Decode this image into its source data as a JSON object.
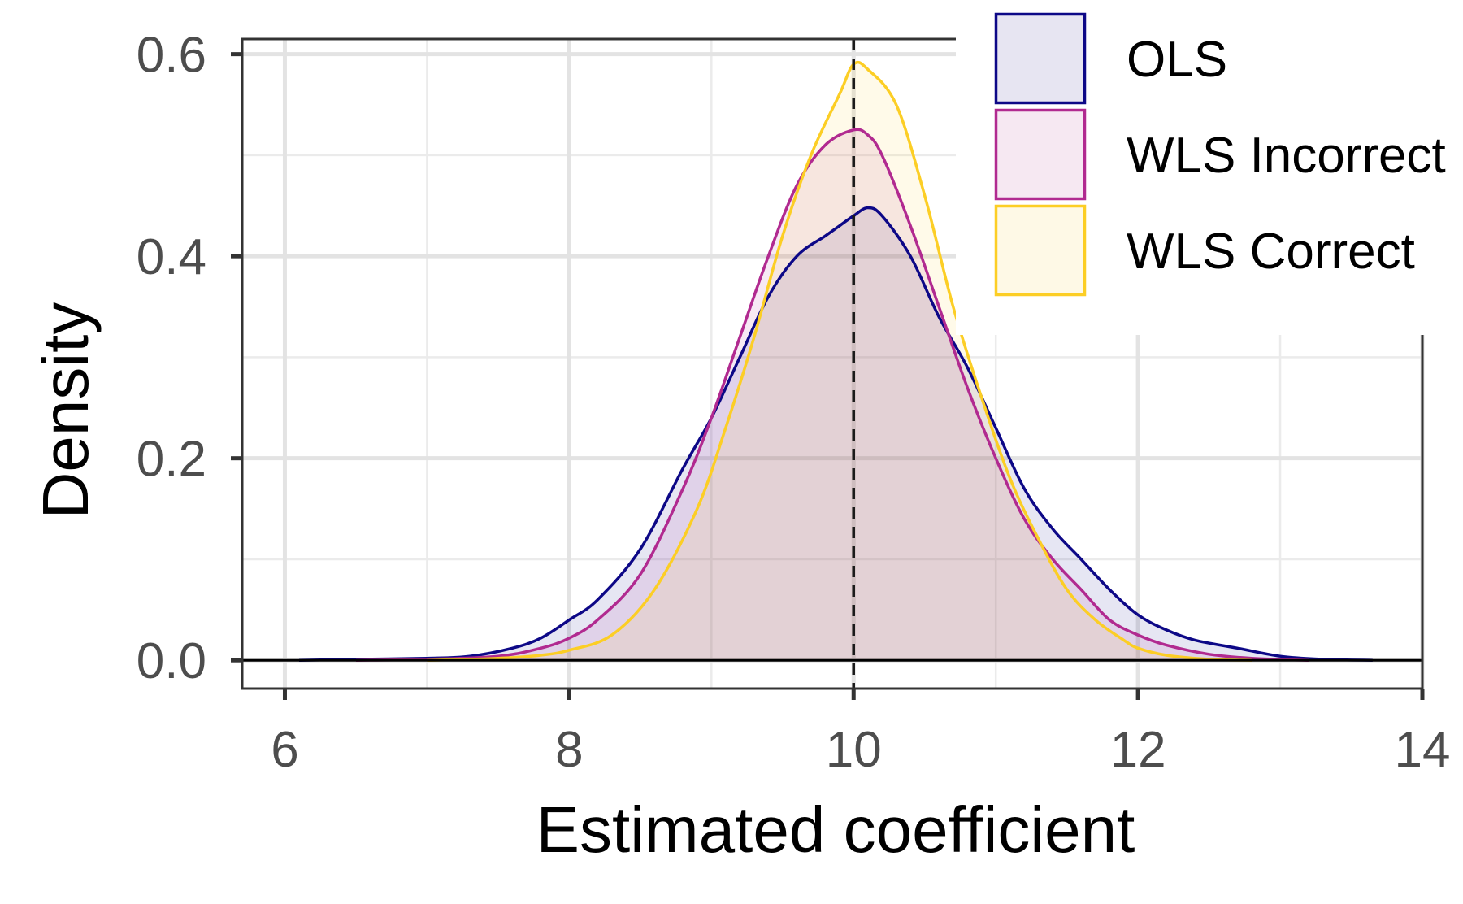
{
  "chart_data": {
    "type": "area",
    "xlabel": "Estimated coefficient",
    "ylabel": "Density",
    "xlim": [
      5.7,
      14
    ],
    "ylim": [
      -0.028,
      0.615
    ],
    "x_ticks": [
      6,
      8,
      10,
      12,
      14
    ],
    "x_tick_labels": [
      "6",
      "8",
      "10",
      "12",
      "14"
    ],
    "y_ticks": [
      0.0,
      0.2,
      0.4,
      0.6
    ],
    "y_tick_labels": [
      "0.0",
      "0.2",
      "0.4",
      "0.6"
    ],
    "x_minor_ticks": [
      7,
      9,
      11,
      13
    ],
    "y_minor_ticks": [
      0.1,
      0.3,
      0.5
    ],
    "grid": true,
    "legend_position": "top-right",
    "reference_line": {
      "x": 10,
      "style": "dashed"
    },
    "series": [
      {
        "name": "OLS",
        "color": "#0d0887",
        "fill": "#e7e5f2",
        "x": [
          6.1,
          6.5,
          7.0,
          7.3,
          7.6,
          7.8,
          8.0,
          8.2,
          8.5,
          8.8,
          9.0,
          9.2,
          9.4,
          9.6,
          9.8,
          9.9,
          10.0,
          10.1,
          10.2,
          10.4,
          10.6,
          10.8,
          11.0,
          11.2,
          11.4,
          11.6,
          11.8,
          12.0,
          12.2,
          12.4,
          12.7,
          13.0,
          13.3,
          13.65
        ],
        "y": [
          0.0,
          0.001,
          0.002,
          0.004,
          0.012,
          0.022,
          0.04,
          0.06,
          0.11,
          0.19,
          0.24,
          0.3,
          0.36,
          0.4,
          0.42,
          0.43,
          0.44,
          0.448,
          0.44,
          0.4,
          0.34,
          0.29,
          0.23,
          0.17,
          0.13,
          0.1,
          0.07,
          0.045,
          0.03,
          0.02,
          0.012,
          0.004,
          0.001,
          0.0
        ]
      },
      {
        "name": "WLS Incorrect",
        "color": "#b12a90",
        "fill": "#f6e8f2",
        "x": [
          6.5,
          7.0,
          7.5,
          7.8,
          8.0,
          8.2,
          8.5,
          8.8,
          9.0,
          9.2,
          9.4,
          9.6,
          9.8,
          10.0,
          10.1,
          10.2,
          10.4,
          10.6,
          10.8,
          11.0,
          11.2,
          11.4,
          11.6,
          11.8,
          12.0,
          12.2,
          12.5,
          12.8,
          13.2
        ],
        "y": [
          0.0,
          0.001,
          0.004,
          0.012,
          0.022,
          0.04,
          0.085,
          0.17,
          0.24,
          0.32,
          0.4,
          0.47,
          0.51,
          0.525,
          0.52,
          0.5,
          0.43,
          0.35,
          0.27,
          0.2,
          0.14,
          0.1,
          0.07,
          0.04,
          0.025,
          0.015,
          0.006,
          0.002,
          0.0
        ]
      },
      {
        "name": "WLS Correct",
        "color": "#fcce25",
        "fill": "#fef9e6",
        "x": [
          7.0,
          7.5,
          7.8,
          8.0,
          8.3,
          8.6,
          8.9,
          9.1,
          9.3,
          9.5,
          9.7,
          9.9,
          10.0,
          10.1,
          10.3,
          10.5,
          10.7,
          10.9,
          11.1,
          11.3,
          11.5,
          11.7,
          11.9,
          12.0,
          12.2,
          12.5,
          12.8
        ],
        "y": [
          0.0,
          0.002,
          0.005,
          0.01,
          0.025,
          0.07,
          0.15,
          0.23,
          0.32,
          0.42,
          0.5,
          0.56,
          0.59,
          0.585,
          0.55,
          0.46,
          0.35,
          0.26,
          0.18,
          0.12,
          0.07,
          0.04,
          0.02,
          0.012,
          0.005,
          0.001,
          0.0
        ]
      }
    ]
  }
}
